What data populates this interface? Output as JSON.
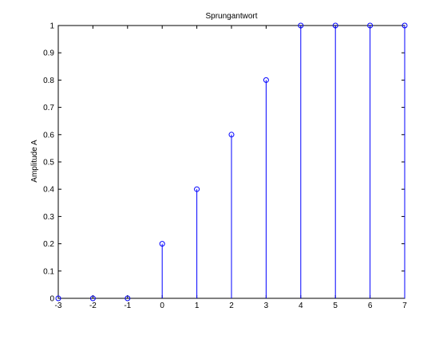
{
  "chart_data": {
    "type": "stem",
    "title": "Sprungantwort",
    "xlabel": "",
    "ylabel": "Amplitude A",
    "xlim": [
      -3,
      7
    ],
    "ylim": [
      0,
      1
    ],
    "grid": false,
    "x": [
      -3,
      -2,
      -1,
      0,
      1,
      2,
      3,
      4,
      5,
      6,
      7
    ],
    "y": [
      0,
      0,
      0,
      0.2,
      0.4,
      0.6,
      0.8,
      1,
      1,
      1,
      1
    ],
    "xticks": [
      "-3",
      "-2",
      "-1",
      "0",
      "1",
      "2",
      "3",
      "4",
      "5",
      "6",
      "7"
    ],
    "yticks": [
      "0",
      "0.1",
      "0.2",
      "0.3",
      "0.4",
      "0.5",
      "0.6",
      "0.7",
      "0.8",
      "0.9",
      "1"
    ],
    "color": "#0000ff"
  }
}
